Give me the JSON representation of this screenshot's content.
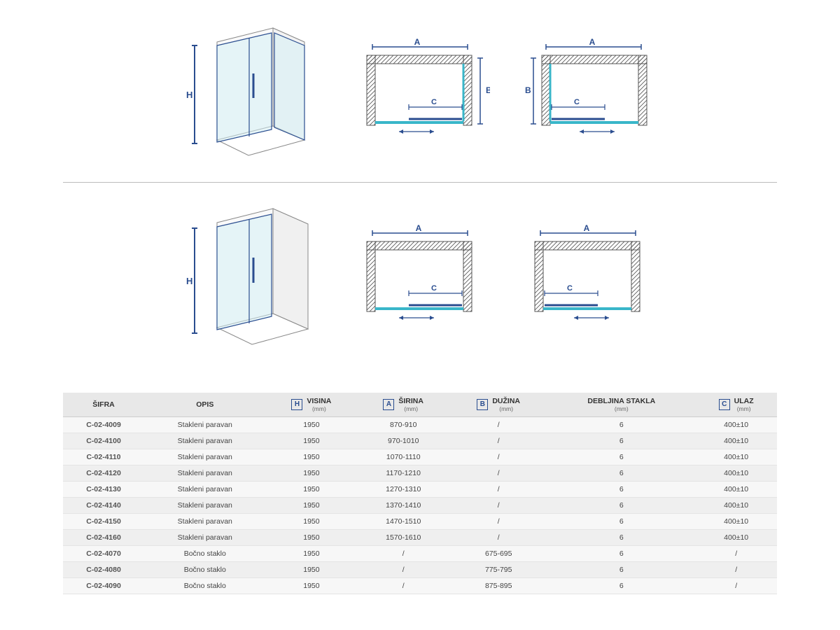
{
  "colors": {
    "blue": "#2a4d8f",
    "glass": "#d4eef4",
    "hatch": "#555555",
    "header_bg": "#e8e8e8",
    "row_odd": "#f7f7f7",
    "row_even": "#efefef",
    "border": "#cccccc"
  },
  "diagrams": {
    "iso_label_H": "H",
    "plan_label_A": "A",
    "plan_label_B": "B",
    "plan_label_C": "C"
  },
  "table": {
    "headers": {
      "sifra": "ŠIFRA",
      "opis": "OPIS",
      "visina": "VISINA",
      "visina_badge": "H",
      "visina_unit": "(mm)",
      "sirina": "ŠIRINA",
      "sirina_badge": "A",
      "sirina_unit": "(mm)",
      "duzina": "DUŽINA",
      "duzina_badge": "B",
      "duzina_unit": "(mm)",
      "debljina": "DEBLJINA STAKLA",
      "debljina_unit": "(mm)",
      "ulaz": "ULAZ",
      "ulaz_badge": "C",
      "ulaz_unit": "(mm)"
    },
    "rows": [
      {
        "sifra": "C-02-4009",
        "opis": "Stakleni paravan",
        "visina": "1950",
        "sirina": "870-910",
        "duzina": "/",
        "debljina": "6",
        "ulaz": "400±10"
      },
      {
        "sifra": "C-02-4100",
        "opis": "Stakleni paravan",
        "visina": "1950",
        "sirina": "970-1010",
        "duzina": "/",
        "debljina": "6",
        "ulaz": "400±10"
      },
      {
        "sifra": "C-02-4110",
        "opis": "Stakleni paravan",
        "visina": "1950",
        "sirina": "1070-1110",
        "duzina": "/",
        "debljina": "6",
        "ulaz": "400±10"
      },
      {
        "sifra": "C-02-4120",
        "opis": "Stakleni paravan",
        "visina": "1950",
        "sirina": "1170-1210",
        "duzina": "/",
        "debljina": "6",
        "ulaz": "400±10"
      },
      {
        "sifra": "C-02-4130",
        "opis": "Stakleni paravan",
        "visina": "1950",
        "sirina": "1270-1310",
        "duzina": "/",
        "debljina": "6",
        "ulaz": "400±10"
      },
      {
        "sifra": "C-02-4140",
        "opis": "Stakleni paravan",
        "visina": "1950",
        "sirina": "1370-1410",
        "duzina": "/",
        "debljina": "6",
        "ulaz": "400±10"
      },
      {
        "sifra": "C-02-4150",
        "opis": "Stakleni paravan",
        "visina": "1950",
        "sirina": "1470-1510",
        "duzina": "/",
        "debljina": "6",
        "ulaz": "400±10"
      },
      {
        "sifra": "C-02-4160",
        "opis": "Stakleni paravan",
        "visina": "1950",
        "sirina": "1570-1610",
        "duzina": "/",
        "debljina": "6",
        "ulaz": "400±10"
      },
      {
        "sifra": "C-02-4070",
        "opis": "Bočno staklo",
        "visina": "1950",
        "sirina": "/",
        "duzina": "675-695",
        "debljina": "6",
        "ulaz": "/"
      },
      {
        "sifra": "C-02-4080",
        "opis": "Bočno staklo",
        "visina": "1950",
        "sirina": "/",
        "duzina": "775-795",
        "debljina": "6",
        "ulaz": "/"
      },
      {
        "sifra": "C-02-4090",
        "opis": "Bočno staklo",
        "visina": "1950",
        "sirina": "/",
        "duzina": "875-895",
        "debljina": "6",
        "ulaz": "/"
      }
    ]
  }
}
